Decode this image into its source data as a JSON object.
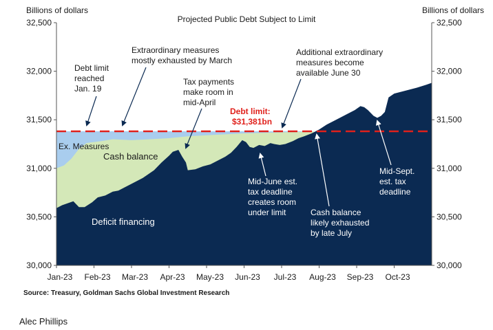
{
  "chart_data": {
    "type": "area",
    "title": "Projected Public Debt Subject to Limit",
    "ylabel_left": "Billions of dollars",
    "ylabel_right": "Billions of dollars",
    "ylim": [
      30000,
      32500
    ],
    "yticks": [
      30000,
      30500,
      31000,
      31500,
      32000,
      32500
    ],
    "ytick_labels": [
      "30,000",
      "30,500",
      "31,000",
      "31,500",
      "32,000",
      "32,500"
    ],
    "xlim": [
      0,
      10
    ],
    "xticks": [
      0,
      1,
      2,
      3,
      4,
      5,
      6,
      7,
      8,
      9
    ],
    "xtick_labels": [
      "Jan-23",
      "Feb-23",
      "Mar-23",
      "Apr-23",
      "May-23",
      "Jun-23",
      "Jul-23",
      "Aug-23",
      "Sep-23",
      "Oct-23"
    ],
    "colors": {
      "deficit": "#0b2a52",
      "cash": "#d4e8b8",
      "measures": "#a9cdee",
      "limit": "#e0201b",
      "axis": "#555555",
      "text": "#1a1a1a"
    },
    "debt_limit": {
      "value": 31381,
      "label_line1": "Debt limit:",
      "label_line2": "$31,381bn"
    },
    "series": [
      {
        "key": "deficit",
        "points": [
          [
            0,
            30590
          ],
          [
            0.15,
            30620
          ],
          [
            0.3,
            30640
          ],
          [
            0.45,
            30660
          ],
          [
            0.6,
            30600
          ],
          [
            0.75,
            30600
          ],
          [
            0.95,
            30650
          ],
          [
            1.1,
            30700
          ],
          [
            1.3,
            30720
          ],
          [
            1.5,
            30760
          ],
          [
            1.65,
            30770
          ],
          [
            1.8,
            30800
          ],
          [
            2.0,
            30840
          ],
          [
            2.3,
            30900
          ],
          [
            2.6,
            30980
          ],
          [
            2.8,
            31060
          ],
          [
            3.0,
            31130
          ],
          [
            3.1,
            31170
          ],
          [
            3.25,
            31190
          ],
          [
            3.35,
            31120
          ],
          [
            3.45,
            31060
          ],
          [
            3.5,
            30980
          ],
          [
            3.7,
            30990
          ],
          [
            3.9,
            31020
          ],
          [
            4.1,
            31040
          ],
          [
            4.3,
            31080
          ],
          [
            4.5,
            31120
          ],
          [
            4.65,
            31160
          ],
          [
            4.8,
            31220
          ],
          [
            4.95,
            31290
          ],
          [
            5.05,
            31270
          ],
          [
            5.15,
            31220
          ],
          [
            5.25,
            31210
          ],
          [
            5.4,
            31240
          ],
          [
            5.55,
            31230
          ],
          [
            5.7,
            31260
          ],
          [
            5.8,
            31250
          ],
          [
            5.95,
            31240
          ],
          [
            6.1,
            31250
          ],
          [
            6.3,
            31280
          ],
          [
            6.45,
            31310
          ],
          [
            6.6,
            31330
          ],
          [
            6.8,
            31360
          ],
          [
            7.0,
            31400
          ],
          [
            7.2,
            31450
          ],
          [
            7.45,
            31500
          ],
          [
            7.75,
            31560
          ],
          [
            7.95,
            31600
          ],
          [
            8.1,
            31640
          ],
          [
            8.2,
            31630
          ],
          [
            8.3,
            31600
          ],
          [
            8.45,
            31540
          ],
          [
            8.55,
            31520
          ],
          [
            8.65,
            31540
          ],
          [
            8.75,
            31580
          ],
          [
            8.85,
            31730
          ],
          [
            9.0,
            31770
          ],
          [
            9.3,
            31800
          ],
          [
            9.6,
            31830
          ],
          [
            9.85,
            31860
          ],
          [
            10.0,
            31880
          ]
        ]
      },
      {
        "key": "cash",
        "points": [
          [
            0,
            31000
          ],
          [
            0.2,
            31030
          ],
          [
            0.4,
            31100
          ],
          [
            0.6,
            31200
          ],
          [
            0.8,
            31260
          ],
          [
            1.0,
            31270
          ],
          [
            1.2,
            31280
          ],
          [
            1.5,
            31300
          ],
          [
            2.0,
            31290
          ],
          [
            2.5,
            31300
          ],
          [
            3.0,
            31310
          ],
          [
            3.5,
            31330
          ],
          [
            4.0,
            31340
          ],
          [
            4.5,
            31350
          ],
          [
            5.0,
            31360
          ],
          [
            5.5,
            31365
          ],
          [
            6.0,
            31370
          ],
          [
            6.5,
            31375
          ],
          [
            6.85,
            31381
          ]
        ]
      },
      {
        "key": "limit_fill",
        "points": [
          [
            0,
            31381
          ],
          [
            6.85,
            31381
          ]
        ]
      }
    ],
    "annotations": {
      "debt_limit_reached": [
        "Debt limit",
        "reached",
        "Jan. 19"
      ],
      "extraordinary": [
        "Extraordinary measures",
        "mostly exhausted by March"
      ],
      "tax_payments": [
        "Tax payments",
        "make room in",
        "mid-April"
      ],
      "additional": [
        "Additional extraordinary",
        "measures become",
        "available June 30"
      ],
      "mid_june": [
        "Mid-June est.",
        "tax deadline",
        "creates room",
        "under limit"
      ],
      "cash_exhausted": [
        "Cash balance",
        "likely exhausted",
        "by late July"
      ],
      "mid_sept": [
        "Mid-Sept.",
        "est. tax",
        "deadline"
      ],
      "label_measures": "Ex. Measures",
      "label_cash": "Cash balance",
      "label_deficit": "Deficit financing"
    }
  },
  "footer": {
    "source": "Source: Treasury, Goldman Sachs Global Investment Research",
    "author": "Alec Phillips"
  }
}
